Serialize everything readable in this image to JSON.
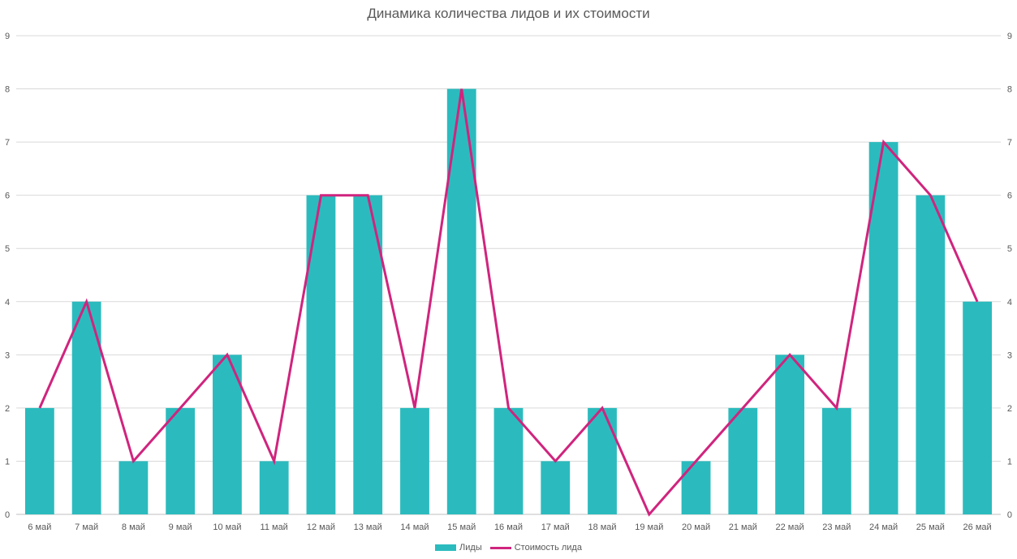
{
  "chart_data": {
    "type": "bar",
    "title": "Динамика количества лидов и их стоимости",
    "categories": [
      "6 май",
      "7 май",
      "8 май",
      "9 май",
      "10 май",
      "11 май",
      "12 май",
      "13 май",
      "14 май",
      "15 май",
      "16 май",
      "17 май",
      "18 май",
      "19 май",
      "20 май",
      "21 май",
      "22 май",
      "23 май",
      "24 май",
      "25 май",
      "26 май"
    ],
    "series": [
      {
        "name": "Лиды",
        "type": "bar",
        "color": "#2BBBBE",
        "values": [
          2,
          4,
          1,
          2,
          3,
          1,
          6,
          6,
          2,
          8,
          2,
          1,
          2,
          0,
          1,
          2,
          3,
          2,
          7,
          6,
          4
        ]
      },
      {
        "name": "Стоимость лида",
        "type": "line",
        "color": "#D0247E",
        "values": [
          2,
          4,
          1,
          2,
          3,
          1,
          6,
          6,
          2,
          8,
          2,
          1,
          2,
          0,
          1,
          2,
          3,
          2,
          7,
          6,
          4
        ]
      }
    ],
    "ylim": [
      0,
      9
    ],
    "yticks": [
      0,
      1,
      2,
      3,
      4,
      5,
      6,
      7,
      8,
      9
    ],
    "grid": true,
    "legend": "bottom"
  }
}
